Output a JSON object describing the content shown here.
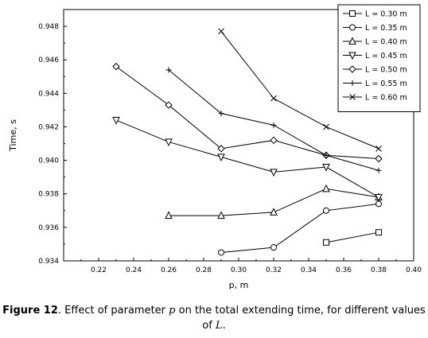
{
  "chart_data": {
    "type": "line",
    "xlabel": "p, m",
    "ylabel": "Time, s",
    "xlim": [
      0.2,
      0.4
    ],
    "ylim": [
      0.934,
      0.949
    ],
    "xticks": [
      0.22,
      0.24,
      0.26,
      0.28,
      0.3,
      0.32,
      0.34,
      0.36,
      0.38,
      0.4
    ],
    "yticks": [
      0.934,
      0.936,
      0.938,
      0.94,
      0.942,
      0.944,
      0.946,
      0.948
    ],
    "legend_position": "top-right",
    "grid": false,
    "series": [
      {
        "name": "L = 0.30 m",
        "marker": "square",
        "x": [
          0.35,
          0.38
        ],
        "y": [
          0.9351,
          0.9357
        ]
      },
      {
        "name": "L = 0.35 m",
        "marker": "circle",
        "x": [
          0.29,
          0.32,
          0.35,
          0.38
        ],
        "y": [
          0.9345,
          0.9348,
          0.937,
          0.9374
        ]
      },
      {
        "name": "L = 0.40 m",
        "marker": "triangle-up",
        "x": [
          0.26,
          0.29,
          0.32,
          0.35,
          0.38
        ],
        "y": [
          0.9367,
          0.9367,
          0.9369,
          0.9383,
          0.9378
        ]
      },
      {
        "name": "L = 0.45 m",
        "marker": "triangle-down",
        "x": [
          0.23,
          0.26,
          0.29,
          0.32,
          0.35,
          0.38
        ],
        "y": [
          0.9424,
          0.9411,
          0.9402,
          0.9393,
          0.9396,
          0.9378
        ]
      },
      {
        "name": "L = 0.50 m",
        "marker": "diamond",
        "x": [
          0.23,
          0.26,
          0.29,
          0.32,
          0.35,
          0.38
        ],
        "y": [
          0.9456,
          0.9433,
          0.9407,
          0.9412,
          0.9403,
          0.9401
        ]
      },
      {
        "name": "L = 0.55 m",
        "marker": "plus",
        "x": [
          0.26,
          0.29,
          0.32,
          0.35,
          0.38
        ],
        "y": [
          0.9454,
          0.9428,
          0.9421,
          0.9403,
          0.9394
        ]
      },
      {
        "name": "L = 0.60 m",
        "marker": "cross",
        "x": [
          0.29,
          0.32,
          0.35,
          0.38
        ],
        "y": [
          0.9477,
          0.9437,
          0.942,
          0.9407
        ]
      }
    ]
  },
  "caption": {
    "label": "Figure 12",
    "text_before": ". Effect of parameter ",
    "param": "p",
    "text_middle": " on the total extending time, for different values of ",
    "symbol": "L",
    "text_end": "."
  }
}
